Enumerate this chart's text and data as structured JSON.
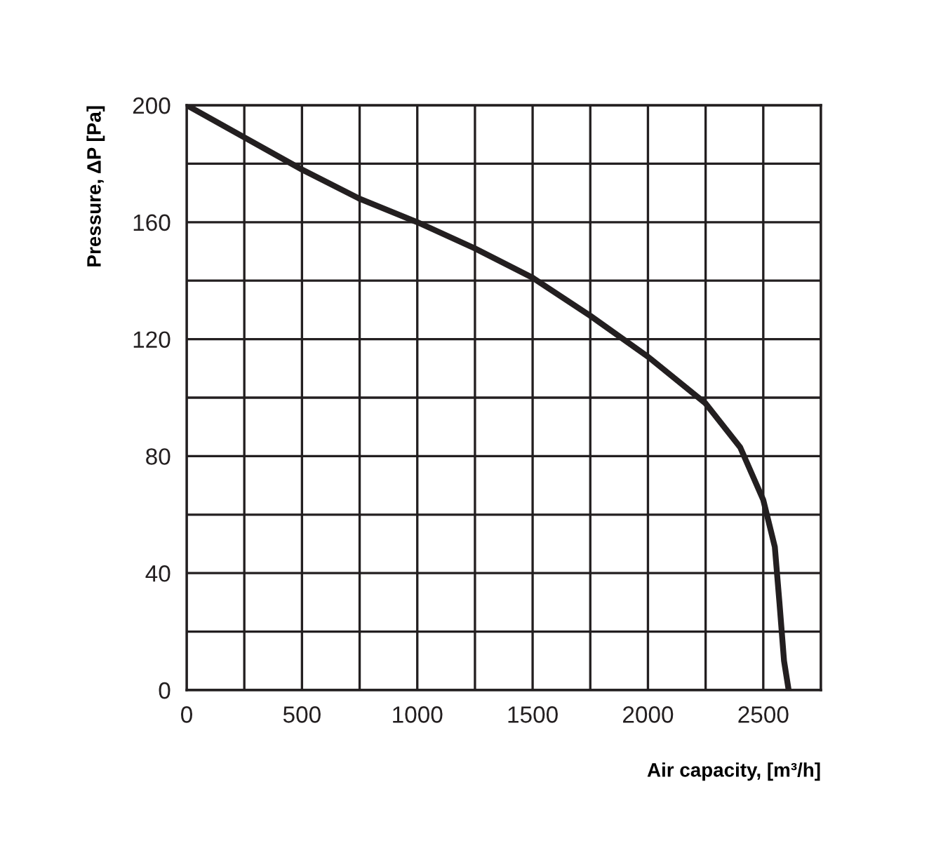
{
  "chart_data": {
    "type": "line",
    "xlabel": "Air capacity, [m³/h]",
    "ylabel": "Pressure, ΔP [Pa]",
    "series": [
      {
        "color": "#231f20",
        "x": [
          0,
          250,
          500,
          750,
          1000,
          1250,
          1500,
          1750,
          2000,
          2250,
          2400,
          2500,
          2550,
          2570,
          2590,
          2610
        ],
        "values": [
          200,
          189,
          178,
          168,
          160,
          151,
          141,
          128,
          114,
          98,
          83,
          65,
          49,
          30,
          10,
          0
        ]
      }
    ],
    "xlim": [
      0,
      2750
    ],
    "ylim": [
      0,
      200
    ],
    "xticks": [
      0,
      {
        "value": 250,
        "label": null
      },
      500,
      {
        "value": 750,
        "label": null
      },
      1000,
      {
        "value": 1250,
        "label": null
      },
      1500,
      {
        "value": 1750,
        "label": null
      },
      2000,
      {
        "value": 2250,
        "label": null
      },
      2500,
      {
        "value": 2750,
        "label": null
      }
    ],
    "yticks": [
      0,
      {
        "value": 20,
        "label": null
      },
      40,
      {
        "value": 60,
        "label": null
      },
      80,
      {
        "value": 100,
        "label": null
      },
      120,
      {
        "value": 140,
        "label": null
      },
      160,
      {
        "value": 180,
        "label": null
      },
      200
    ],
    "grid": true,
    "marker": "none",
    "line_style": "solid",
    "legend": false
  }
}
